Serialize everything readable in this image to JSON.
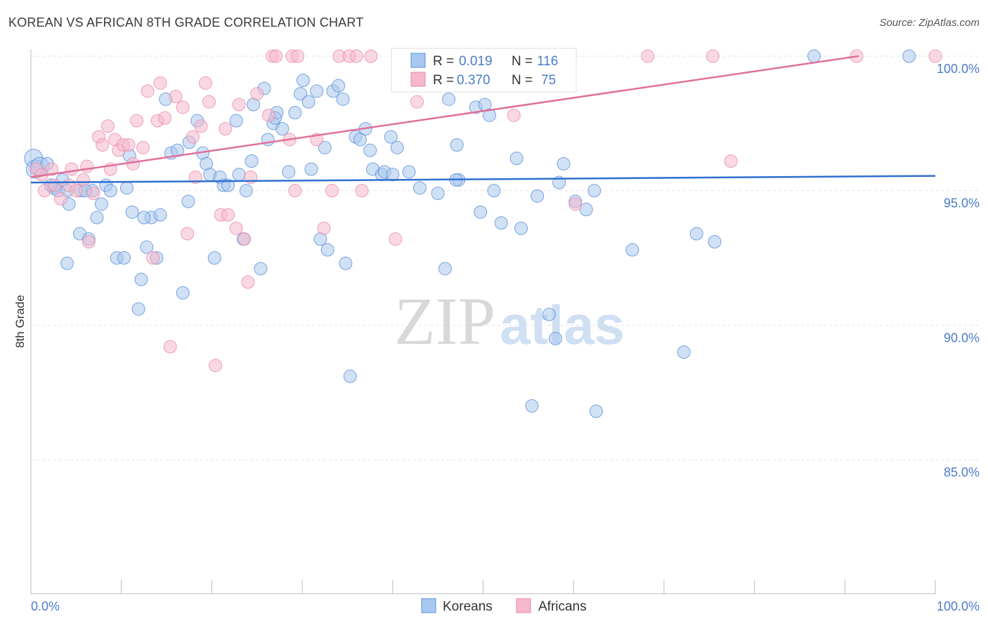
{
  "title": "KOREAN VS AFRICAN 8TH GRADE CORRELATION CHART",
  "source": "Source: ZipAtlas.com",
  "watermark": {
    "zip": "ZIP",
    "atlas": "atlas"
  },
  "legend_box": {
    "rows": [
      {
        "r_label": "R =",
        "r_value": "0.019",
        "n_label": "N =",
        "n_value": "116"
      },
      {
        "r_label": "R =",
        "r_value": "0.370",
        "n_label": "N =",
        "n_value": "75"
      }
    ]
  },
  "bottom_legend": [
    "Koreans",
    "Africans"
  ],
  "colors": {
    "koreans_fill": "#a9c8ef",
    "koreans_stroke": "#5b8fd6",
    "koreans_line": "#2f6fd0",
    "africans_fill": "#f5b8cc",
    "africans_stroke": "#e98aa9",
    "africans_line": "#e0709a",
    "tick_text": "#4a7cc9",
    "grid": "#e3e3e3"
  },
  "chart_data": {
    "type": "scatter",
    "title": "KOREAN VS AFRICAN 8TH GRADE CORRELATION CHART",
    "xlabel": "",
    "ylabel": "8th Grade",
    "xlim": [
      0,
      100
    ],
    "ylim": [
      80.5,
      100.8
    ],
    "x_tick_labels": [
      "0.0%",
      "100.0%"
    ],
    "y_ticks": [
      85,
      90,
      95,
      100
    ],
    "y_tick_labels": [
      "85.0%",
      "90.0%",
      "95.0%",
      "100.0%"
    ],
    "grid": "horizontal dashed",
    "legend_position": "top-center",
    "series": [
      {
        "name": "Koreans",
        "R": 0.019,
        "N": 116,
        "trend": [
          [
            0,
            95.3
          ],
          [
            100,
            95.55
          ]
        ],
        "points": [
          [
            0.3,
            96.2
          ],
          [
            0.5,
            95.8
          ],
          [
            1.0,
            95.9
          ],
          [
            1.8,
            96.0
          ],
          [
            2.5,
            95.1
          ],
          [
            3.0,
            95.0
          ],
          [
            3.5,
            95.4
          ],
          [
            4.0,
            92.3
          ],
          [
            4.2,
            94.5
          ],
          [
            5.5,
            95.0
          ],
          [
            5.4,
            93.4
          ],
          [
            6.4,
            93.2
          ],
          [
            6.8,
            95.0
          ],
          [
            7.3,
            94.0
          ],
          [
            7.8,
            94.5
          ],
          [
            8.3,
            95.2
          ],
          [
            8.8,
            95.0
          ],
          [
            9.5,
            92.5
          ],
          [
            10.3,
            92.5
          ],
          [
            10.6,
            95.1
          ],
          [
            10.9,
            96.3
          ],
          [
            11.2,
            94.2
          ],
          [
            11.9,
            90.6
          ],
          [
            12.2,
            91.7
          ],
          [
            12.8,
            92.9
          ],
          [
            13.3,
            94.0
          ],
          [
            13.9,
            92.5
          ],
          [
            14.3,
            94.1
          ],
          [
            14.9,
            98.4
          ],
          [
            15.5,
            96.4
          ],
          [
            16.2,
            96.5
          ],
          [
            16.8,
            91.2
          ],
          [
            17.4,
            94.6
          ],
          [
            17.5,
            96.8
          ],
          [
            18.4,
            97.6
          ],
          [
            19.0,
            96.4
          ],
          [
            19.4,
            96.0
          ],
          [
            19.8,
            95.6
          ],
          [
            20.3,
            92.5
          ],
          [
            20.9,
            95.5
          ],
          [
            21.3,
            95.2
          ],
          [
            21.8,
            95.2
          ],
          [
            22.7,
            97.6
          ],
          [
            23.5,
            93.2
          ],
          [
            23.8,
            95.0
          ],
          [
            24.4,
            96.1
          ],
          [
            24.6,
            98.2
          ],
          [
            25.4,
            92.1
          ],
          [
            25.8,
            98.8
          ],
          [
            26.2,
            96.9
          ],
          [
            26.8,
            97.5
          ],
          [
            27.2,
            97.9
          ],
          [
            27.8,
            97.3
          ],
          [
            28.5,
            95.7
          ],
          [
            29.2,
            97.9
          ],
          [
            29.8,
            98.6
          ],
          [
            30.1,
            99.1
          ],
          [
            30.7,
            98.3
          ],
          [
            31.0,
            95.8
          ],
          [
            31.6,
            98.7
          ],
          [
            32.0,
            93.2
          ],
          [
            32.5,
            96.6
          ],
          [
            32.8,
            92.8
          ],
          [
            33.4,
            98.7
          ],
          [
            34.0,
            98.9
          ],
          [
            34.5,
            98.4
          ],
          [
            34.8,
            92.3
          ],
          [
            35.3,
            88.1
          ],
          [
            35.9,
            97.0
          ],
          [
            36.4,
            96.9
          ],
          [
            37.0,
            97.3
          ],
          [
            37.5,
            96.5
          ],
          [
            37.8,
            95.8
          ],
          [
            38.8,
            95.6
          ],
          [
            39.1,
            95.7
          ],
          [
            39.8,
            97.0
          ],
          [
            40.5,
            96.6
          ],
          [
            41.8,
            95.7
          ],
          [
            43.0,
            95.1
          ],
          [
            45.0,
            94.9
          ],
          [
            45.8,
            92.1
          ],
          [
            46.2,
            98.4
          ],
          [
            47.1,
            96.7
          ],
          [
            47.3,
            95.4
          ],
          [
            49.2,
            98.1
          ],
          [
            49.7,
            94.2
          ],
          [
            50.2,
            98.2
          ],
          [
            50.7,
            97.8
          ],
          [
            51.2,
            95.0
          ],
          [
            52.0,
            93.8
          ],
          [
            53.7,
            96.2
          ],
          [
            54.2,
            93.6
          ],
          [
            55.4,
            87.0
          ],
          [
            56.0,
            94.8
          ],
          [
            57.3,
            90.4
          ],
          [
            58.0,
            89.5
          ],
          [
            58.4,
            95.3
          ],
          [
            58.9,
            96.0
          ],
          [
            60.2,
            94.6
          ],
          [
            61.4,
            94.3
          ],
          [
            62.3,
            95.0
          ],
          [
            62.5,
            86.8
          ],
          [
            66.5,
            92.8
          ],
          [
            72.2,
            89.0
          ],
          [
            73.6,
            93.4
          ],
          [
            75.6,
            93.1
          ],
          [
            86.6,
            100.0
          ],
          [
            97.1,
            100.0
          ],
          [
            4.0,
            95.0
          ],
          [
            12.5,
            94.0
          ],
          [
            23.0,
            95.6
          ],
          [
            27.0,
            97.7
          ],
          [
            40.0,
            95.6
          ],
          [
            47.0,
            95.4
          ],
          [
            2.2,
            95.2
          ],
          [
            6.0,
            95.0
          ]
        ]
      },
      {
        "name": "Africans",
        "R": 0.37,
        "N": 75,
        "trend": [
          [
            0,
            95.5
          ],
          [
            91.5,
            100.0
          ]
        ],
        "points": [
          [
            0.6,
            95.8
          ],
          [
            1.2,
            95.6
          ],
          [
            1.5,
            95.0
          ],
          [
            2.3,
            95.8
          ],
          [
            2.6,
            95.2
          ],
          [
            3.3,
            94.7
          ],
          [
            4.2,
            95.2
          ],
          [
            4.5,
            95.8
          ],
          [
            5.0,
            95.0
          ],
          [
            5.8,
            95.4
          ],
          [
            6.2,
            95.9
          ],
          [
            6.4,
            93.1
          ],
          [
            6.9,
            94.9
          ],
          [
            7.5,
            97.0
          ],
          [
            7.9,
            96.7
          ],
          [
            8.5,
            97.4
          ],
          [
            8.8,
            95.8
          ],
          [
            9.3,
            96.9
          ],
          [
            9.7,
            96.5
          ],
          [
            10.2,
            96.7
          ],
          [
            10.8,
            96.7
          ],
          [
            11.3,
            96.0
          ],
          [
            11.7,
            97.6
          ],
          [
            12.4,
            96.6
          ],
          [
            12.9,
            98.7
          ],
          [
            13.5,
            92.5
          ],
          [
            14.0,
            97.6
          ],
          [
            14.3,
            99.0
          ],
          [
            14.8,
            97.7
          ],
          [
            15.4,
            89.2
          ],
          [
            16.0,
            98.5
          ],
          [
            16.8,
            98.1
          ],
          [
            17.3,
            93.4
          ],
          [
            17.9,
            97.0
          ],
          [
            18.2,
            95.5
          ],
          [
            18.8,
            97.4
          ],
          [
            19.3,
            99.0
          ],
          [
            19.7,
            98.3
          ],
          [
            20.4,
            88.5
          ],
          [
            21.0,
            94.1
          ],
          [
            21.5,
            97.3
          ],
          [
            21.8,
            94.1
          ],
          [
            22.7,
            93.6
          ],
          [
            23.0,
            98.2
          ],
          [
            23.6,
            93.2
          ],
          [
            24.0,
            91.6
          ],
          [
            24.3,
            95.5
          ],
          [
            25.0,
            98.6
          ],
          [
            26.3,
            97.8
          ],
          [
            26.7,
            100.0
          ],
          [
            27.1,
            100.0
          ],
          [
            28.6,
            96.9
          ],
          [
            28.9,
            100.0
          ],
          [
            29.2,
            95.0
          ],
          [
            29.5,
            100.0
          ],
          [
            31.6,
            96.9
          ],
          [
            32.4,
            93.6
          ],
          [
            33.3,
            95.0
          ],
          [
            34.1,
            100.0
          ],
          [
            35.2,
            100.0
          ],
          [
            36.0,
            100.0
          ],
          [
            36.6,
            95.0
          ],
          [
            37.6,
            100.0
          ],
          [
            40.3,
            93.2
          ],
          [
            41.0,
            99.0
          ],
          [
            42.7,
            98.3
          ],
          [
            43.2,
            100.0
          ],
          [
            51.8,
            99.2
          ],
          [
            53.4,
            97.8
          ],
          [
            60.2,
            94.5
          ],
          [
            68.2,
            100.0
          ],
          [
            75.4,
            100.0
          ],
          [
            77.4,
            96.1
          ],
          [
            91.3,
            100.0
          ],
          [
            100.0,
            100.0
          ]
        ]
      }
    ]
  }
}
